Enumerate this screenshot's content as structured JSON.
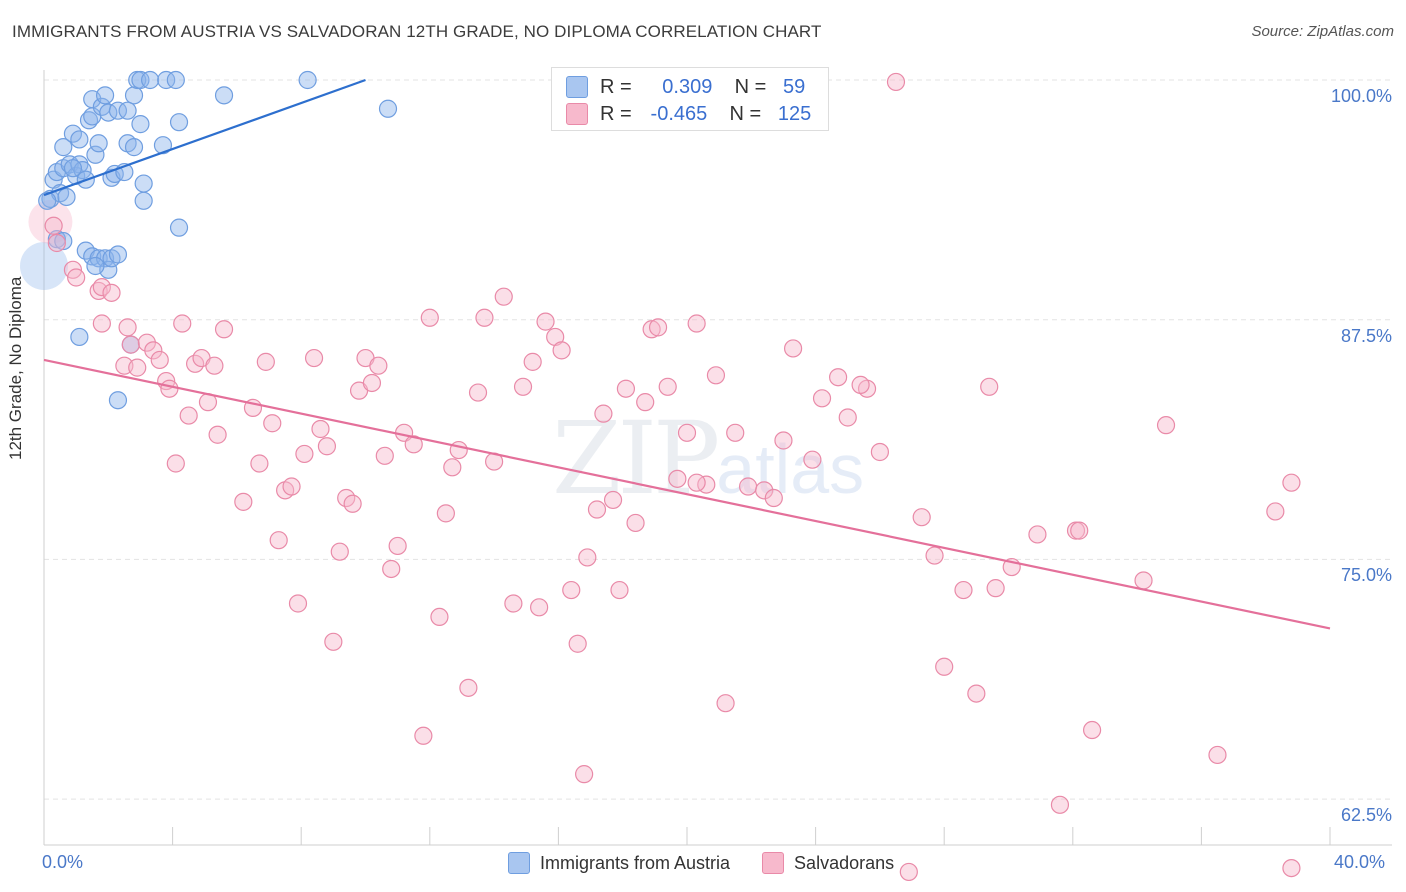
{
  "title": "IMMIGRANTS FROM AUSTRIA VS SALVADORAN 12TH GRADE, NO DIPLOMA CORRELATION CHART",
  "source": "Source: ZipAtlas.com",
  "watermark": {
    "zip": "ZIP",
    "atlas": "atlas"
  },
  "legend": {
    "rows": [
      {
        "r_label": "R =",
        "r_value": "0.309",
        "n_label": "N =",
        "n_value": "59",
        "color": "#a9c6f0",
        "border": "#6f9ee0"
      },
      {
        "r_label": "R =",
        "r_value": "-0.465",
        "n_label": "N =",
        "n_value": "125",
        "color": "#f7b9cc",
        "border": "#e98aa8"
      }
    ]
  },
  "bottom_legend": [
    {
      "label": "Immigrants from Austria",
      "color": "#a9c6f0",
      "border": "#6f9ee0"
    },
    {
      "label": "Salvadorans",
      "color": "#f7b9cc",
      "border": "#e98aa8"
    }
  ],
  "chart_data": {
    "type": "scatter",
    "ylabel": "12th Grade, No Diploma",
    "xlim": [
      0,
      40
    ],
    "ylim": [
      50,
      100.5
    ],
    "x_tick_labels": [
      "0.0%",
      "40.0%"
    ],
    "y_ticks": [
      {
        "value": 100.0,
        "label": "100.0%"
      },
      {
        "value": 87.5,
        "label": "87.5%"
      },
      {
        "value": 75.0,
        "label": "75.0%"
      },
      {
        "value": 62.5,
        "label": "62.5%"
      }
    ],
    "grid": true,
    "series": [
      {
        "name": "Immigrants from Austria",
        "color": "#6f9ee0",
        "fill": "rgba(140,180,235,0.45)",
        "trend": {
          "x": [
            0,
            10.0
          ],
          "y": [
            94.0,
            100.0
          ],
          "color": "#2d6fce"
        },
        "points": [
          [
            0.2,
            93.8
          ],
          [
            0.3,
            94.8
          ],
          [
            0.4,
            95.2
          ],
          [
            0.5,
            94.1
          ],
          [
            0.6,
            96.5
          ],
          [
            0.6,
            95.4
          ],
          [
            0.7,
            93.9
          ],
          [
            0.8,
            95.6
          ],
          [
            0.9,
            97.2
          ],
          [
            1.0,
            95.0
          ],
          [
            1.1,
            96.9
          ],
          [
            1.1,
            95.6
          ],
          [
            1.2,
            95.3
          ],
          [
            1.3,
            94.8
          ],
          [
            1.4,
            97.9
          ],
          [
            1.5,
            98.1
          ],
          [
            1.5,
            99.0
          ],
          [
            1.6,
            96.1
          ],
          [
            1.7,
            96.7
          ],
          [
            1.8,
            98.6
          ],
          [
            1.9,
            99.2
          ],
          [
            2.0,
            98.3
          ],
          [
            2.1,
            94.9
          ],
          [
            2.2,
            95.1
          ],
          [
            2.3,
            98.4
          ],
          [
            2.5,
            95.2
          ],
          [
            2.6,
            96.7
          ],
          [
            2.8,
            96.5
          ],
          [
            3.0,
            97.7
          ],
          [
            3.1,
            94.6
          ],
          [
            1.3,
            91.1
          ],
          [
            1.5,
            90.8
          ],
          [
            1.7,
            90.7
          ],
          [
            1.9,
            90.7
          ],
          [
            2.0,
            90.1
          ],
          [
            2.1,
            90.7
          ],
          [
            2.3,
            90.9
          ],
          [
            0.4,
            91.7
          ],
          [
            0.6,
            91.6
          ],
          [
            1.6,
            90.3
          ],
          [
            3.7,
            96.6
          ],
          [
            4.2,
            97.8
          ],
          [
            3.1,
            93.7
          ],
          [
            4.2,
            92.3
          ],
          [
            2.8,
            99.2
          ],
          [
            2.6,
            98.4
          ],
          [
            2.9,
            100.0
          ],
          [
            3.0,
            100.0
          ],
          [
            3.3,
            100.0
          ],
          [
            3.8,
            100.0
          ],
          [
            4.1,
            100.0
          ],
          [
            5.6,
            99.2
          ],
          [
            8.2,
            100.0
          ],
          [
            10.7,
            98.5
          ],
          [
            1.1,
            86.6
          ],
          [
            2.7,
            86.2
          ],
          [
            2.3,
            83.3
          ],
          [
            0.1,
            93.7
          ],
          [
            0.9,
            95.4
          ]
        ]
      },
      {
        "name": "Salvadorans",
        "color": "#e98aa8",
        "fill": "rgba(247,185,204,0.45)",
        "trend": {
          "x": [
            0,
            40.0
          ],
          "y": [
            85.4,
            71.4
          ],
          "color": "#e4709a"
        },
        "points": [
          [
            0.3,
            92.4
          ],
          [
            0.4,
            91.5
          ],
          [
            0.9,
            90.1
          ],
          [
            1.0,
            89.7
          ],
          [
            1.7,
            89.0
          ],
          [
            1.8,
            89.2
          ],
          [
            2.1,
            88.9
          ],
          [
            1.8,
            87.3
          ],
          [
            2.5,
            85.1
          ],
          [
            2.6,
            87.1
          ],
          [
            2.7,
            86.2
          ],
          [
            2.9,
            85.0
          ],
          [
            3.2,
            86.3
          ],
          [
            3.4,
            85.9
          ],
          [
            3.6,
            85.4
          ],
          [
            3.8,
            84.3
          ],
          [
            3.9,
            83.9
          ],
          [
            4.1,
            80.0
          ],
          [
            4.3,
            87.3
          ],
          [
            4.5,
            82.5
          ],
          [
            4.7,
            85.2
          ],
          [
            4.9,
            85.5
          ],
          [
            5.1,
            83.2
          ],
          [
            5.3,
            85.1
          ],
          [
            5.4,
            81.5
          ],
          [
            5.6,
            87.0
          ],
          [
            6.2,
            78.0
          ],
          [
            6.5,
            82.9
          ],
          [
            6.7,
            80.0
          ],
          [
            6.9,
            85.3
          ],
          [
            7.1,
            82.1
          ],
          [
            7.3,
            76.0
          ],
          [
            7.5,
            78.6
          ],
          [
            7.7,
            78.8
          ],
          [
            7.9,
            72.7
          ],
          [
            8.1,
            80.5
          ],
          [
            8.4,
            85.5
          ],
          [
            8.6,
            81.8
          ],
          [
            8.8,
            80.9
          ],
          [
            9.0,
            70.7
          ],
          [
            9.2,
            75.4
          ],
          [
            9.4,
            78.2
          ],
          [
            9.6,
            77.9
          ],
          [
            9.8,
            83.8
          ],
          [
            10.0,
            85.5
          ],
          [
            10.2,
            84.2
          ],
          [
            10.4,
            85.1
          ],
          [
            10.6,
            80.4
          ],
          [
            10.8,
            74.5
          ],
          [
            11.0,
            75.7
          ],
          [
            11.2,
            81.6
          ],
          [
            11.5,
            81.0
          ],
          [
            11.8,
            65.8
          ],
          [
            12.0,
            87.6
          ],
          [
            12.3,
            72.0
          ],
          [
            12.5,
            77.4
          ],
          [
            12.7,
            79.8
          ],
          [
            12.9,
            80.7
          ],
          [
            13.2,
            68.3
          ],
          [
            13.5,
            83.7
          ],
          [
            13.7,
            87.6
          ],
          [
            14.0,
            80.1
          ],
          [
            14.3,
            88.7
          ],
          [
            14.6,
            72.7
          ],
          [
            14.9,
            84.0
          ],
          [
            15.2,
            85.3
          ],
          [
            15.4,
            72.5
          ],
          [
            15.6,
            87.4
          ],
          [
            15.9,
            86.6
          ],
          [
            16.1,
            85.9
          ],
          [
            16.4,
            73.4
          ],
          [
            16.6,
            70.6
          ],
          [
            16.9,
            75.1
          ],
          [
            17.2,
            77.6
          ],
          [
            17.4,
            82.6
          ],
          [
            17.7,
            78.1
          ],
          [
            17.9,
            73.4
          ],
          [
            18.1,
            83.9
          ],
          [
            18.4,
            76.9
          ],
          [
            18.7,
            83.2
          ],
          [
            18.9,
            87.0
          ],
          [
            19.1,
            87.1
          ],
          [
            19.4,
            84.0
          ],
          [
            19.7,
            79.2
          ],
          [
            20.0,
            81.6
          ],
          [
            20.3,
            87.3
          ],
          [
            20.6,
            78.9
          ],
          [
            20.9,
            84.6
          ],
          [
            21.2,
            67.5
          ],
          [
            21.5,
            81.6
          ],
          [
            21.9,
            78.8
          ],
          [
            22.4,
            78.6
          ],
          [
            22.7,
            78.2
          ],
          [
            23.0,
            81.2
          ],
          [
            23.3,
            86.0
          ],
          [
            23.9,
            80.2
          ],
          [
            24.2,
            83.4
          ],
          [
            24.7,
            84.5
          ],
          [
            25.0,
            82.4
          ],
          [
            25.6,
            83.9
          ],
          [
            26.0,
            80.6
          ],
          [
            25.4,
            84.1
          ],
          [
            26.5,
            99.9
          ],
          [
            26.9,
            58.7
          ],
          [
            27.3,
            77.2
          ],
          [
            27.7,
            75.2
          ],
          [
            28.0,
            69.4
          ],
          [
            28.6,
            73.4
          ],
          [
            29.0,
            68.0
          ],
          [
            29.4,
            84.0
          ],
          [
            29.6,
            73.5
          ],
          [
            30.9,
            76.3
          ],
          [
            32.1,
            76.5
          ],
          [
            31.6,
            62.2
          ],
          [
            32.6,
            66.1
          ],
          [
            32.2,
            76.5
          ],
          [
            34.2,
            73.9
          ],
          [
            34.9,
            82.0
          ],
          [
            36.5,
            64.8
          ],
          [
            38.3,
            77.5
          ],
          [
            38.8,
            79.0
          ],
          [
            38.8,
            58.9
          ],
          [
            16.8,
            63.8
          ],
          [
            20.3,
            79.0
          ],
          [
            30.1,
            74.6
          ]
        ]
      }
    ]
  }
}
